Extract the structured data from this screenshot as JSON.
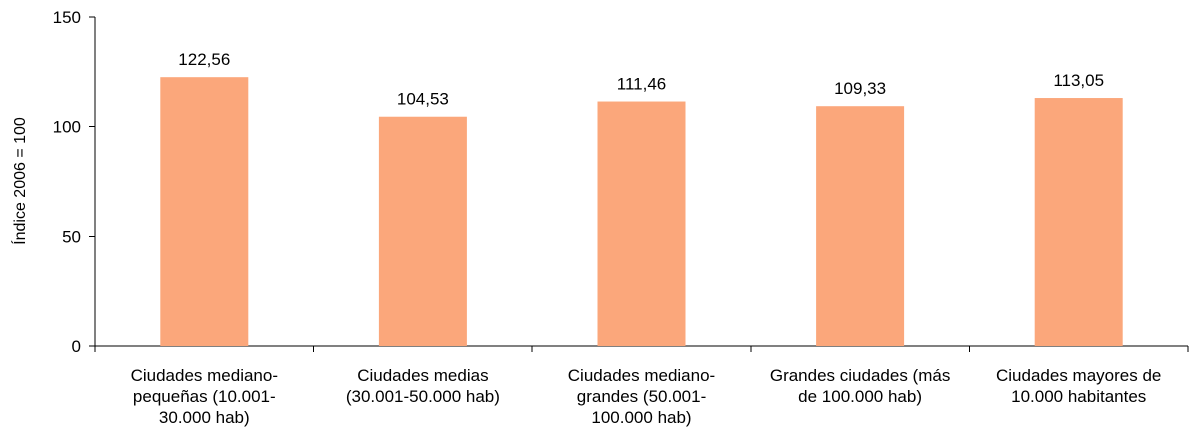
{
  "chart_data": {
    "type": "bar",
    "title": "",
    "xlabel": "",
    "ylabel": "Índice 2006 = 100",
    "ylim": [
      0,
      150
    ],
    "yticks": [
      "0",
      "50",
      "100",
      "150"
    ],
    "ytick_values": [
      0,
      50,
      100,
      150
    ],
    "grid": false,
    "legend": "none",
    "bar_color": "#FBA77B",
    "categories": [
      [
        "Ciudades mediano-",
        "pequeñas (10.001-",
        "30.000 hab)"
      ],
      [
        "Ciudades medias",
        "(30.001-50.000 hab)"
      ],
      [
        "Ciudades mediano-",
        "grandes (50.001-",
        "100.000 hab)"
      ],
      [
        "Grandes ciudades (más",
        "de 100.000 hab)"
      ],
      [
        "Ciudades mayores de",
        "10.000 habitantes"
      ]
    ],
    "values": [
      122.56,
      104.53,
      111.46,
      109.33,
      113.05
    ],
    "value_labels": [
      "122,56",
      "104,53",
      "111,46",
      "109,33",
      "113,05"
    ]
  }
}
